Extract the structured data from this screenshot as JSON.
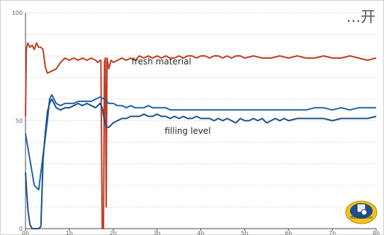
{
  "page": {
    "corner_label": "...开",
    "badge_label": "MICRUFactor"
  },
  "chart_data": {
    "type": "line",
    "ylim": [
      0,
      100
    ],
    "yticks": [
      0,
      50,
      100
    ],
    "xlim": [
      0,
      8
    ],
    "xticks": [
      0,
      1,
      2,
      3,
      4,
      5,
      6,
      7,
      8
    ],
    "xtick_labels": [
      "0h",
      "1h",
      "2h",
      "3h",
      "4h",
      "5h",
      "6h",
      "7h",
      "8h"
    ],
    "grid": true,
    "colors": {
      "fresh": "#c23b22",
      "filling_a": "#1d63a8",
      "filling_b": "#1a4f86",
      "grid": "#d9d9d9",
      "axis": "#444444"
    },
    "series": [
      {
        "name": "fresh material",
        "color": "#c23b22",
        "points": [
          [
            0.0,
            52
          ],
          [
            0.02,
            83
          ],
          [
            0.05,
            86
          ],
          [
            0.1,
            84
          ],
          [
            0.15,
            85
          ],
          [
            0.2,
            83
          ],
          [
            0.25,
            86
          ],
          [
            0.3,
            84
          ],
          [
            0.35,
            84
          ],
          [
            0.4,
            83
          ],
          [
            0.45,
            75
          ],
          [
            0.5,
            72
          ],
          [
            0.6,
            73
          ],
          [
            0.7,
            74
          ],
          [
            0.8,
            77
          ],
          [
            0.9,
            79
          ],
          [
            1.0,
            78
          ],
          [
            1.1,
            79
          ],
          [
            1.2,
            78
          ],
          [
            1.3,
            79
          ],
          [
            1.4,
            78
          ],
          [
            1.5,
            79
          ],
          [
            1.6,
            78
          ],
          [
            1.65,
            77
          ],
          [
            1.7,
            78
          ],
          [
            1.72,
            78
          ],
          [
            1.75,
            0
          ],
          [
            1.78,
            0
          ],
          [
            1.8,
            77
          ],
          [
            1.82,
            79
          ],
          [
            1.84,
            10
          ],
          [
            1.86,
            79
          ],
          [
            1.9,
            74
          ],
          [
            1.95,
            78
          ],
          [
            2.0,
            77
          ],
          [
            2.1,
            78
          ],
          [
            2.2,
            79
          ],
          [
            2.3,
            78
          ],
          [
            2.4,
            79
          ],
          [
            2.5,
            78
          ],
          [
            2.6,
            80
          ],
          [
            2.7,
            79
          ],
          [
            2.8,
            80
          ],
          [
            2.9,
            79
          ],
          [
            3.0,
            80
          ],
          [
            3.1,
            79
          ],
          [
            3.2,
            80
          ],
          [
            3.3,
            79
          ],
          [
            3.4,
            79
          ],
          [
            3.5,
            80
          ],
          [
            3.6,
            79
          ],
          [
            3.7,
            80
          ],
          [
            3.8,
            80
          ],
          [
            3.9,
            79
          ],
          [
            4.0,
            80
          ],
          [
            4.1,
            80
          ],
          [
            4.2,
            79
          ],
          [
            4.3,
            80
          ],
          [
            4.4,
            80
          ],
          [
            4.5,
            79
          ],
          [
            4.6,
            80
          ],
          [
            4.7,
            79
          ],
          [
            4.8,
            80
          ],
          [
            4.9,
            80
          ],
          [
            5.0,
            79
          ],
          [
            5.2,
            80
          ],
          [
            5.4,
            79
          ],
          [
            5.6,
            79
          ],
          [
            5.8,
            80
          ],
          [
            6.0,
            79
          ],
          [
            6.2,
            80
          ],
          [
            6.4,
            79
          ],
          [
            6.6,
            79
          ],
          [
            6.8,
            80
          ],
          [
            7.0,
            79
          ],
          [
            7.2,
            79
          ],
          [
            7.4,
            80
          ],
          [
            7.6,
            79
          ],
          [
            7.8,
            78
          ],
          [
            8.0,
            79
          ]
        ]
      },
      {
        "name": "",
        "color": "#1d63a8",
        "points": [
          [
            0.0,
            44
          ],
          [
            0.05,
            38
          ],
          [
            0.1,
            32
          ],
          [
            0.15,
            26
          ],
          [
            0.2,
            20
          ],
          [
            0.3,
            18
          ],
          [
            0.4,
            34
          ],
          [
            0.5,
            50
          ],
          [
            0.55,
            60
          ],
          [
            0.6,
            62
          ],
          [
            0.7,
            58
          ],
          [
            0.8,
            57
          ],
          [
            0.9,
            58
          ],
          [
            1.0,
            58
          ],
          [
            1.1,
            58
          ],
          [
            1.2,
            59
          ],
          [
            1.3,
            59
          ],
          [
            1.4,
            59
          ],
          [
            1.5,
            59
          ],
          [
            1.6,
            60
          ],
          [
            1.7,
            61
          ],
          [
            1.8,
            60
          ],
          [
            1.9,
            58
          ],
          [
            2.0,
            58
          ],
          [
            2.1,
            57
          ],
          [
            2.2,
            57
          ],
          [
            2.3,
            56
          ],
          [
            2.4,
            57
          ],
          [
            2.5,
            56
          ],
          [
            2.6,
            56
          ],
          [
            2.7,
            56
          ],
          [
            2.8,
            57
          ],
          [
            2.9,
            56
          ],
          [
            3.0,
            56
          ],
          [
            3.1,
            56
          ],
          [
            3.2,
            56
          ],
          [
            3.3,
            55
          ],
          [
            3.4,
            55
          ],
          [
            3.5,
            55
          ],
          [
            3.6,
            55
          ],
          [
            3.7,
            55
          ],
          [
            3.8,
            55
          ],
          [
            3.9,
            55
          ],
          [
            4.0,
            55
          ],
          [
            4.2,
            55
          ],
          [
            4.4,
            55
          ],
          [
            4.6,
            55
          ],
          [
            4.8,
            55
          ],
          [
            5.0,
            55
          ],
          [
            5.2,
            55
          ],
          [
            5.4,
            55
          ],
          [
            5.6,
            55
          ],
          [
            5.8,
            55
          ],
          [
            6.0,
            55
          ],
          [
            6.2,
            55
          ],
          [
            6.4,
            55
          ],
          [
            6.6,
            56
          ],
          [
            6.8,
            56
          ],
          [
            7.0,
            55
          ],
          [
            7.2,
            56
          ],
          [
            7.4,
            55
          ],
          [
            7.6,
            56
          ],
          [
            7.8,
            56
          ],
          [
            8.0,
            56
          ]
        ]
      },
      {
        "name": "filling level",
        "color": "#1a4f86",
        "points": [
          [
            0.0,
            26
          ],
          [
            0.03,
            16
          ],
          [
            0.06,
            8
          ],
          [
            0.1,
            2
          ],
          [
            0.15,
            0
          ],
          [
            0.2,
            0
          ],
          [
            0.3,
            0
          ],
          [
            0.35,
            1
          ],
          [
            0.4,
            32
          ],
          [
            0.45,
            44
          ],
          [
            0.5,
            54
          ],
          [
            0.55,
            58
          ],
          [
            0.6,
            60
          ],
          [
            0.7,
            56
          ],
          [
            0.8,
            55
          ],
          [
            0.9,
            56
          ],
          [
            1.0,
            56
          ],
          [
            1.1,
            57
          ],
          [
            1.2,
            58
          ],
          [
            1.3,
            57
          ],
          [
            1.4,
            58
          ],
          [
            1.5,
            57
          ],
          [
            1.6,
            56
          ],
          [
            1.7,
            58
          ],
          [
            1.75,
            56
          ],
          [
            1.8,
            50
          ],
          [
            1.85,
            47
          ],
          [
            1.9,
            47
          ],
          [
            2.0,
            49
          ],
          [
            2.1,
            50
          ],
          [
            2.2,
            51
          ],
          [
            2.3,
            51
          ],
          [
            2.4,
            52
          ],
          [
            2.5,
            52
          ],
          [
            2.6,
            52
          ],
          [
            2.7,
            53
          ],
          [
            2.8,
            52
          ],
          [
            2.9,
            52
          ],
          [
            3.0,
            53
          ],
          [
            3.1,
            52
          ],
          [
            3.2,
            52
          ],
          [
            3.3,
            51
          ],
          [
            3.4,
            52
          ],
          [
            3.5,
            51
          ],
          [
            3.6,
            52
          ],
          [
            3.7,
            51
          ],
          [
            3.8,
            51
          ],
          [
            3.9,
            52
          ],
          [
            4.0,
            51
          ],
          [
            4.1,
            51
          ],
          [
            4.2,
            51
          ],
          [
            4.3,
            50
          ],
          [
            4.4,
            51
          ],
          [
            4.5,
            50
          ],
          [
            4.6,
            51
          ],
          [
            4.7,
            50
          ],
          [
            4.8,
            49
          ],
          [
            4.9,
            51
          ],
          [
            5.0,
            50
          ],
          [
            5.1,
            50
          ],
          [
            5.2,
            51
          ],
          [
            5.3,
            50
          ],
          [
            5.4,
            51
          ],
          [
            5.5,
            49
          ],
          [
            5.6,
            50
          ],
          [
            5.7,
            51
          ],
          [
            5.8,
            50
          ],
          [
            5.9,
            51
          ],
          [
            6.0,
            50
          ],
          [
            6.2,
            51
          ],
          [
            6.4,
            51
          ],
          [
            6.6,
            51
          ],
          [
            6.8,
            51
          ],
          [
            7.0,
            50
          ],
          [
            7.2,
            51
          ],
          [
            7.4,
            51
          ],
          [
            7.6,
            51
          ],
          [
            7.8,
            51
          ],
          [
            8.0,
            52
          ]
        ]
      }
    ]
  }
}
